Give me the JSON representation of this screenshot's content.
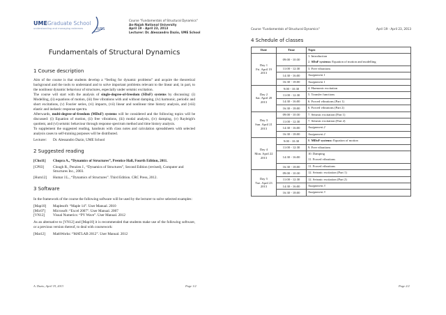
{
  "page1": {
    "logo": {
      "ume": "UME",
      "graduate": "Graduate School",
      "tagline": "understanding and managing extremes",
      "iuss": "IUSS"
    },
    "header_lines": [
      "Course \"Fundamentals of Structural Dynamics\"",
      "An-Najah National University",
      "April 19 - April 23, 2013",
      "Lecturer:   Dr. Alessandro Dazio, UME School"
    ],
    "title": "Fundamentals of Structural Dynamics",
    "s1_title": "1  Course description",
    "s1_p1": "Aim of the course is that students develop a “feeling for dynamic problems” and acquire the theoretical background and the tools to understand and to solve important problems relevant to the linear and, in part, to the nonlinear dynamic behaviour of structures, especially under seismic excitation.",
    "s1_p2a": "The course will start with the analysis of ",
    "s1_p2b": "single-degree-of-freedom (SDoF) systems",
    "s1_p2c": " by discussing: (i) Modelling, (ii) equations of motion, (iii) free vibrations with and without damping, (iv) harmonic, periodic and short excitations, (v) Fourier series, (vi) impacts, (vii) linear and nonlinear time history analysis, and (viii) elastic and inelastic response spectra.",
    "s1_p3a": "Afterwards, ",
    "s1_p3b": "multi-degree-of-freedom (MDoF) systems",
    "s1_p3c": " will be considered and the following topics will be discussed: (i) Equation of motion, (ii) free vibrations, (iii) modal analysis, (iv) damping, (v) Rayleigh's quotient, and (vi) seismic behaviour through response spectrum method and time history analysis.",
    "s1_p4": "To supplement the suggested reading, handouts with class notes and calculation spreadsheets with selected analysis cases to self-training purposes will be distributed.",
    "lecturer_label": "Lecturer:",
    "lecturer_name": "Dr. Alessandro Dazio, UME School",
    "s2_title": "2  Suggested reading",
    "reading": [
      {
        "key": "[Cho11]",
        "text": "Chopra A., “Dynamics of Structures”, Prentice Hall, Fourth Edition, 2011."
      },
      {
        "key": "[CP03]",
        "text": "Clough R., Penzien J., “Dynamics of Structures”, Second Edition (revised), Computer and Structures Inc., 2003."
      },
      {
        "key": "[Hum12]",
        "text": "Humar J.L., “Dynamics of Structures”. Third Edition. CRC Press, 2012."
      }
    ],
    "s3_title": "3  Software",
    "s3_p1": "In the framework of the course the following software will be used by the lecturer to solve selected examples:",
    "software": [
      {
        "key": "[Map10]",
        "text": "Maplesoft: “Maple 14”. User Manual. 2010"
      },
      {
        "key": "[Mic07]",
        "text": "Microsoft: “Excel 2007”. User Manual. 2007"
      },
      {
        "key": "[VN12]",
        "text": "Visual Numerics: “PV Wave”. User Manual. 2012"
      }
    ],
    "s3_p2": "As an alternative to [VN12] and [Map10] it is recommended that students make use of the following software, or a previous version thereof, to deal with coursework:",
    "software_alt": [
      {
        "key": "[Mat12]",
        "text": "MathWorks: “MATLAB 2012”. User Manual. 2012"
      }
    ],
    "footer_left": "A. Dazio, April 19, 2013",
    "footer_page": "Page 1/2"
  },
  "page2": {
    "header_left": "Course \"Fundamentals of Structural Dynamics\"",
    "header_right": "April 19 - April 23, 2013",
    "s4_title": "4  Schedule of classes",
    "columns": [
      "Date",
      "Time",
      "Topic"
    ],
    "days": [
      {
        "date": [
          "Day 1",
          "Fri. April 19",
          "2013"
        ],
        "rows": [
          {
            "time": "09:00 - 10:30",
            "topics": [
              {
                "t": "1.   Introduction"
              },
              {
                "t": "2.   ",
                "b": "SDoF systems:",
                "r": " Equation of motion and modelling"
              }
            ]
          },
          {
            "time": "11:00 - 12:30",
            "topics": [
              {
                "t": "3.   Free vibrations"
              }
            ]
          },
          {
            "time": "14:30 - 16:00",
            "topics": [
              {
                "i": "Assignment 1"
              }
            ]
          },
          {
            "time": "16:30 - 18:00",
            "topics": [
              {
                "i": "Assignment 1"
              }
            ]
          }
        ]
      },
      {
        "date": [
          "Day 2",
          "Sat. April 20",
          "2013"
        ],
        "rows": [
          {
            "time": "9:00 - 10:30",
            "topics": [
              {
                "t": "4.   Harmonic excitation"
              }
            ]
          },
          {
            "time": "11:00 - 12:30",
            "topics": [
              {
                "t": "5.   Transfer functions"
              }
            ]
          },
          {
            "time": "14:30 - 16:00",
            "topics": [
              {
                "t": "6.   Forced vibrations (Part 1)"
              }
            ]
          },
          {
            "time": "16:30 - 18:00",
            "topics": [
              {
                "t": "6.   Forced vibrations (Part 2)"
              }
            ]
          }
        ]
      },
      {
        "date": [
          "Day 3",
          "Sun. April 21",
          "2013"
        ],
        "rows": [
          {
            "time": "09:00 - 10:30",
            "topics": [
              {
                "t": "7.   Seismic excitation (Part 1)"
              }
            ]
          },
          {
            "time": "11:00 - 12:30",
            "topics": [
              {
                "t": "7.   Seismic excitation (Part 2)"
              }
            ]
          },
          {
            "time": "14:30 - 16:00",
            "topics": [
              {
                "i": "Assignment 2"
              }
            ]
          },
          {
            "time": "16:30 - 18:00",
            "topics": [
              {
                "i": "Assignment 2"
              }
            ]
          }
        ]
      },
      {
        "date": [
          "Day 4",
          "Mon. April 22",
          "2013"
        ],
        "rows": [
          {
            "time": "9:00 - 10:30",
            "topics": [
              {
                "t": "8.   ",
                "b": "MDoF systems:",
                "r": " Equation of motion"
              }
            ]
          },
          {
            "time": "11:00 - 12:30",
            "topics": [
              {
                "t": "9.   Free vibrations"
              }
            ]
          },
          {
            "time": "14:30 - 16:00",
            "topics": [
              {
                "t": "10. Damping"
              },
              {
                "t": "11. Forced vibrations"
              }
            ]
          },
          {
            "time": "16:30 - 18:00",
            "topics": [
              {
                "t": "11. Forced vibrations"
              }
            ]
          }
        ]
      },
      {
        "date": [
          "Day 5",
          "Tue. April 23",
          "2013"
        ],
        "rows": [
          {
            "time": "09:00 - 10:30",
            "topics": [
              {
                "t": "12. Seismic excitation (Part 1)"
              }
            ]
          },
          {
            "time": "11:00 - 12:30",
            "topics": [
              {
                "t": "12. Seismic excitation (Part 2)"
              }
            ]
          },
          {
            "time": "14:30 - 16:00",
            "topics": [
              {
                "i": "Assignment 3"
              }
            ]
          },
          {
            "time": "16:30 - 18:00",
            "topics": [
              {
                "i": "Assignment 3"
              }
            ]
          }
        ]
      }
    ],
    "footer_page": "Page 2/2"
  }
}
